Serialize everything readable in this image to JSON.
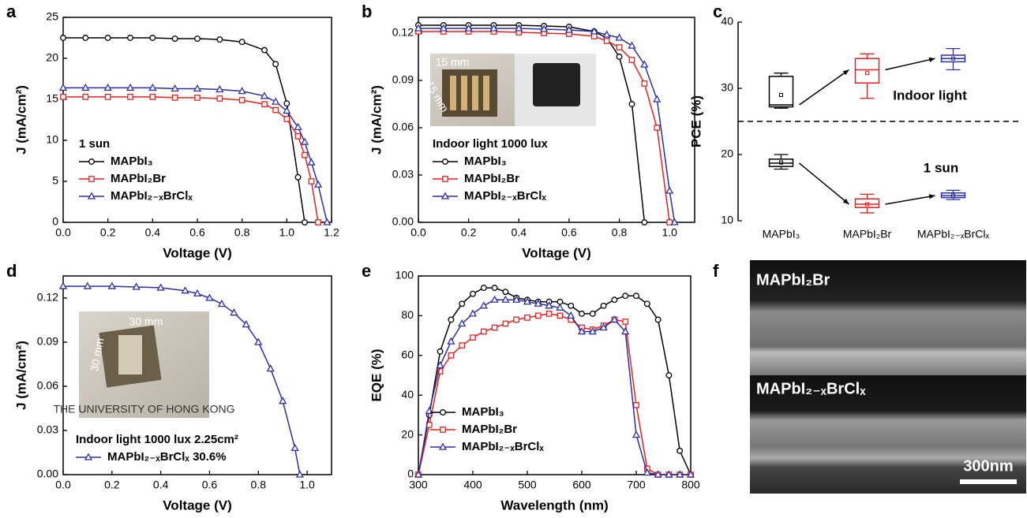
{
  "chart_data": [
    {
      "type": "line",
      "panel": "a",
      "xlabel": "Voltage (V)",
      "ylabel": "J (mA/cm²)",
      "xlim": [
        0,
        1.2
      ],
      "ylim": [
        0,
        25
      ],
      "xticks": [
        {
          "value": 0,
          "label": "0.0"
        },
        0.2,
        0.4,
        0.6,
        0.8,
        {
          "value": 1,
          "label": "1.0"
        },
        1.2
      ],
      "yticks": [
        0,
        5,
        10,
        15,
        20,
        25
      ],
      "annotations": [
        "1 sun"
      ],
      "x": [
        0,
        0.1,
        0.2,
        0.3,
        0.4,
        0.5,
        0.6,
        0.7,
        0.8,
        0.9,
        0.95,
        1.0,
        1.05,
        1.08,
        1.11,
        1.14,
        1.18
      ],
      "series": [
        {
          "name": "MAPbI₃",
          "color": "#000000",
          "marker": "circle",
          "values": [
            22.5,
            22.5,
            22.5,
            22.5,
            22.5,
            22.4,
            22.4,
            22.3,
            22.0,
            21.0,
            19.3,
            14.5,
            5.5,
            0,
            null,
            null,
            null
          ]
        },
        {
          "name": "MAPbI₂Br",
          "color": "#e8201c",
          "marker": "square",
          "values": [
            15.3,
            15.3,
            15.3,
            15.3,
            15.3,
            15.2,
            15.2,
            15.1,
            14.9,
            14.4,
            13.7,
            12.6,
            10.5,
            8.2,
            5.0,
            0,
            null
          ]
        },
        {
          "name": "MAPbI₂₋ₓBrClₓ",
          "color": "#2b2fa8",
          "marker": "triangle",
          "values": [
            16.4,
            16.4,
            16.4,
            16.4,
            16.4,
            16.3,
            16.3,
            16.2,
            16.0,
            15.4,
            14.7,
            13.6,
            11.6,
            9.8,
            7.3,
            4.6,
            0
          ]
        }
      ]
    },
    {
      "type": "line",
      "panel": "b",
      "xlabel": "Voltage (V)",
      "ylabel": "J (mA/cm²)",
      "xlim": [
        0,
        1.1
      ],
      "ylim": [
        0,
        0.13
      ],
      "xticks": [
        {
          "value": 0,
          "label": "0.0"
        },
        0.2,
        0.4,
        0.6,
        0.8,
        {
          "value": 1,
          "label": "1.0"
        }
      ],
      "yticks": [
        {
          "value": 0,
          "label": "0.00"
        },
        {
          "value": 0.03,
          "label": "0.03"
        },
        {
          "value": 0.06,
          "label": "0.06"
        },
        {
          "value": 0.09,
          "label": "0.09"
        },
        {
          "value": 0.12,
          "label": "0.12"
        }
      ],
      "annotations": [
        "Indoor light 1000 lux"
      ],
      "inset_labels": [
        "15 mm",
        "15 mm"
      ],
      "x": [
        0,
        0.1,
        0.2,
        0.3,
        0.4,
        0.5,
        0.6,
        0.7,
        0.75,
        0.8,
        0.85,
        0.9,
        0.95,
        1.0,
        1.02
      ],
      "series": [
        {
          "name": "MAPbI₃",
          "color": "#000000",
          "marker": "circle",
          "values": [
            0.125,
            0.125,
            0.125,
            0.125,
            0.125,
            0.1245,
            0.124,
            0.121,
            0.117,
            0.105,
            0.075,
            0,
            null,
            null,
            null
          ]
        },
        {
          "name": "MAPbI₂Br",
          "color": "#e8201c",
          "marker": "square",
          "values": [
            0.121,
            0.121,
            0.121,
            0.121,
            0.1205,
            0.12,
            0.1195,
            0.118,
            0.115,
            0.111,
            0.103,
            0.088,
            0.06,
            0,
            null
          ]
        },
        {
          "name": "MAPbI₂₋ₓBrClₓ",
          "color": "#2b2fa8",
          "marker": "triangle",
          "values": [
            0.123,
            0.123,
            0.123,
            0.123,
            0.123,
            0.1225,
            0.122,
            0.121,
            0.119,
            0.117,
            0.112,
            0.1,
            0.078,
            0.02,
            0
          ]
        }
      ]
    },
    {
      "type": "box",
      "panel": "c",
      "ylabel": "PCE (%)",
      "ylim": [
        10,
        40
      ],
      "yticks": [
        10,
        20,
        30,
        40
      ],
      "reference_line": 25,
      "categories": [
        "MAPbI₃",
        "MAPbI₂Br",
        "MAPbI₂₋ₓBrClₓ"
      ],
      "colors": [
        "#000000",
        "#e8201c",
        "#2b2fa8"
      ],
      "series": [
        {
          "name": "Indoor light",
          "min": [
            27,
            28.5,
            32.8
          ],
          "q1": [
            27.2,
            30.8,
            34
          ],
          "median": [
            27.5,
            32.8,
            34.5
          ],
          "q3": [
            31.8,
            34.5,
            35
          ],
          "max": [
            32.3,
            35.2,
            36
          ],
          "mean": [
            29,
            32.3,
            34.5
          ]
        },
        {
          "name": "1 sun",
          "min": [
            17.8,
            11.2,
            13.2
          ],
          "q1": [
            18.2,
            12,
            13.5
          ],
          "median": [
            18.7,
            12.5,
            13.8
          ],
          "q3": [
            19.3,
            13.3,
            14.2
          ],
          "max": [
            20,
            14,
            14.6
          ],
          "mean": [
            18.8,
            12.5,
            13.8
          ]
        }
      ]
    },
    {
      "type": "line",
      "panel": "d",
      "xlabel": "Voltage (V)",
      "ylabel": "J (mA/cm²)",
      "xlim": [
        0,
        1.1
      ],
      "ylim": [
        0,
        0.135
      ],
      "xticks": [
        {
          "value": 0,
          "label": "0.0"
        },
        0.2,
        0.4,
        0.6,
        0.8,
        {
          "value": 1,
          "label": "1.0"
        }
      ],
      "yticks": [
        {
          "value": 0,
          "label": "0.00"
        },
        {
          "value": 0.03,
          "label": "0.03"
        },
        {
          "value": 0.06,
          "label": "0.06"
        },
        {
          "value": 0.09,
          "label": "0.09"
        },
        {
          "value": 0.12,
          "label": "0.12"
        }
      ],
      "annotations": [
        "Indoor light 1000 lux 2.25cm²"
      ],
      "inset_labels": [
        "30 mm",
        "30 mm",
        "THE UNIVERSITY OF HONG KONG"
      ],
      "x": [
        0,
        0.1,
        0.2,
        0.3,
        0.4,
        0.5,
        0.55,
        0.6,
        0.65,
        0.7,
        0.75,
        0.8,
        0.85,
        0.9,
        0.95,
        0.97
      ],
      "series": [
        {
          "name": "MAPbI₂₋ₓBrClₓ 30.6%",
          "color": "#2b2fa8",
          "marker": "triangle",
          "values": [
            0.128,
            0.128,
            0.128,
            0.1275,
            0.127,
            0.125,
            0.123,
            0.12,
            0.116,
            0.11,
            0.102,
            0.09,
            0.072,
            0.05,
            0.018,
            0
          ]
        }
      ]
    },
    {
      "type": "line",
      "panel": "e",
      "xlabel": "Wavelength (nm)",
      "ylabel": "EQE (%)",
      "xlim": [
        300,
        800
      ],
      "ylim": [
        0,
        100
      ],
      "xticks": [
        300,
        400,
        500,
        600,
        700,
        800
      ],
      "yticks": [
        0,
        20,
        40,
        60,
        80,
        100
      ],
      "x": [
        300,
        320,
        340,
        360,
        380,
        400,
        420,
        440,
        460,
        480,
        500,
        520,
        540,
        560,
        580,
        600,
        620,
        640,
        660,
        680,
        700,
        720,
        740,
        760,
        780,
        800
      ],
      "series": [
        {
          "name": "MAPbI₃",
          "color": "#000000",
          "marker": "circle",
          "values": [
            0,
            30,
            62,
            78,
            86,
            91,
            94,
            94,
            92,
            89,
            88,
            87,
            87,
            87,
            85,
            81,
            81,
            85,
            88,
            90,
            90,
            86,
            78,
            50,
            12,
            0
          ]
        },
        {
          "name": "MAPbI₂Br",
          "color": "#e8201c",
          "marker": "square",
          "values": [
            0,
            25,
            52,
            60,
            65,
            69,
            72,
            74,
            76,
            78,
            79,
            80,
            81,
            80,
            78,
            74,
            73,
            75,
            78,
            77,
            35,
            3,
            0,
            0,
            0,
            0
          ]
        },
        {
          "name": "MAPbI₂₋ₓBrClₓ",
          "color": "#2b2fa8",
          "marker": "triangle",
          "values": [
            0,
            32,
            55,
            67,
            76,
            81,
            85,
            88,
            88,
            88,
            87,
            86,
            85,
            84,
            80,
            72,
            72,
            74,
            78,
            72,
            20,
            1,
            0,
            0,
            0,
            0
          ]
        }
      ]
    },
    {
      "type": "image",
      "panel": "f",
      "labels": [
        "MAPbI₂Br",
        "MAPbI₂₋ₓBrClₓ"
      ],
      "scale_bar": "300nm"
    }
  ]
}
